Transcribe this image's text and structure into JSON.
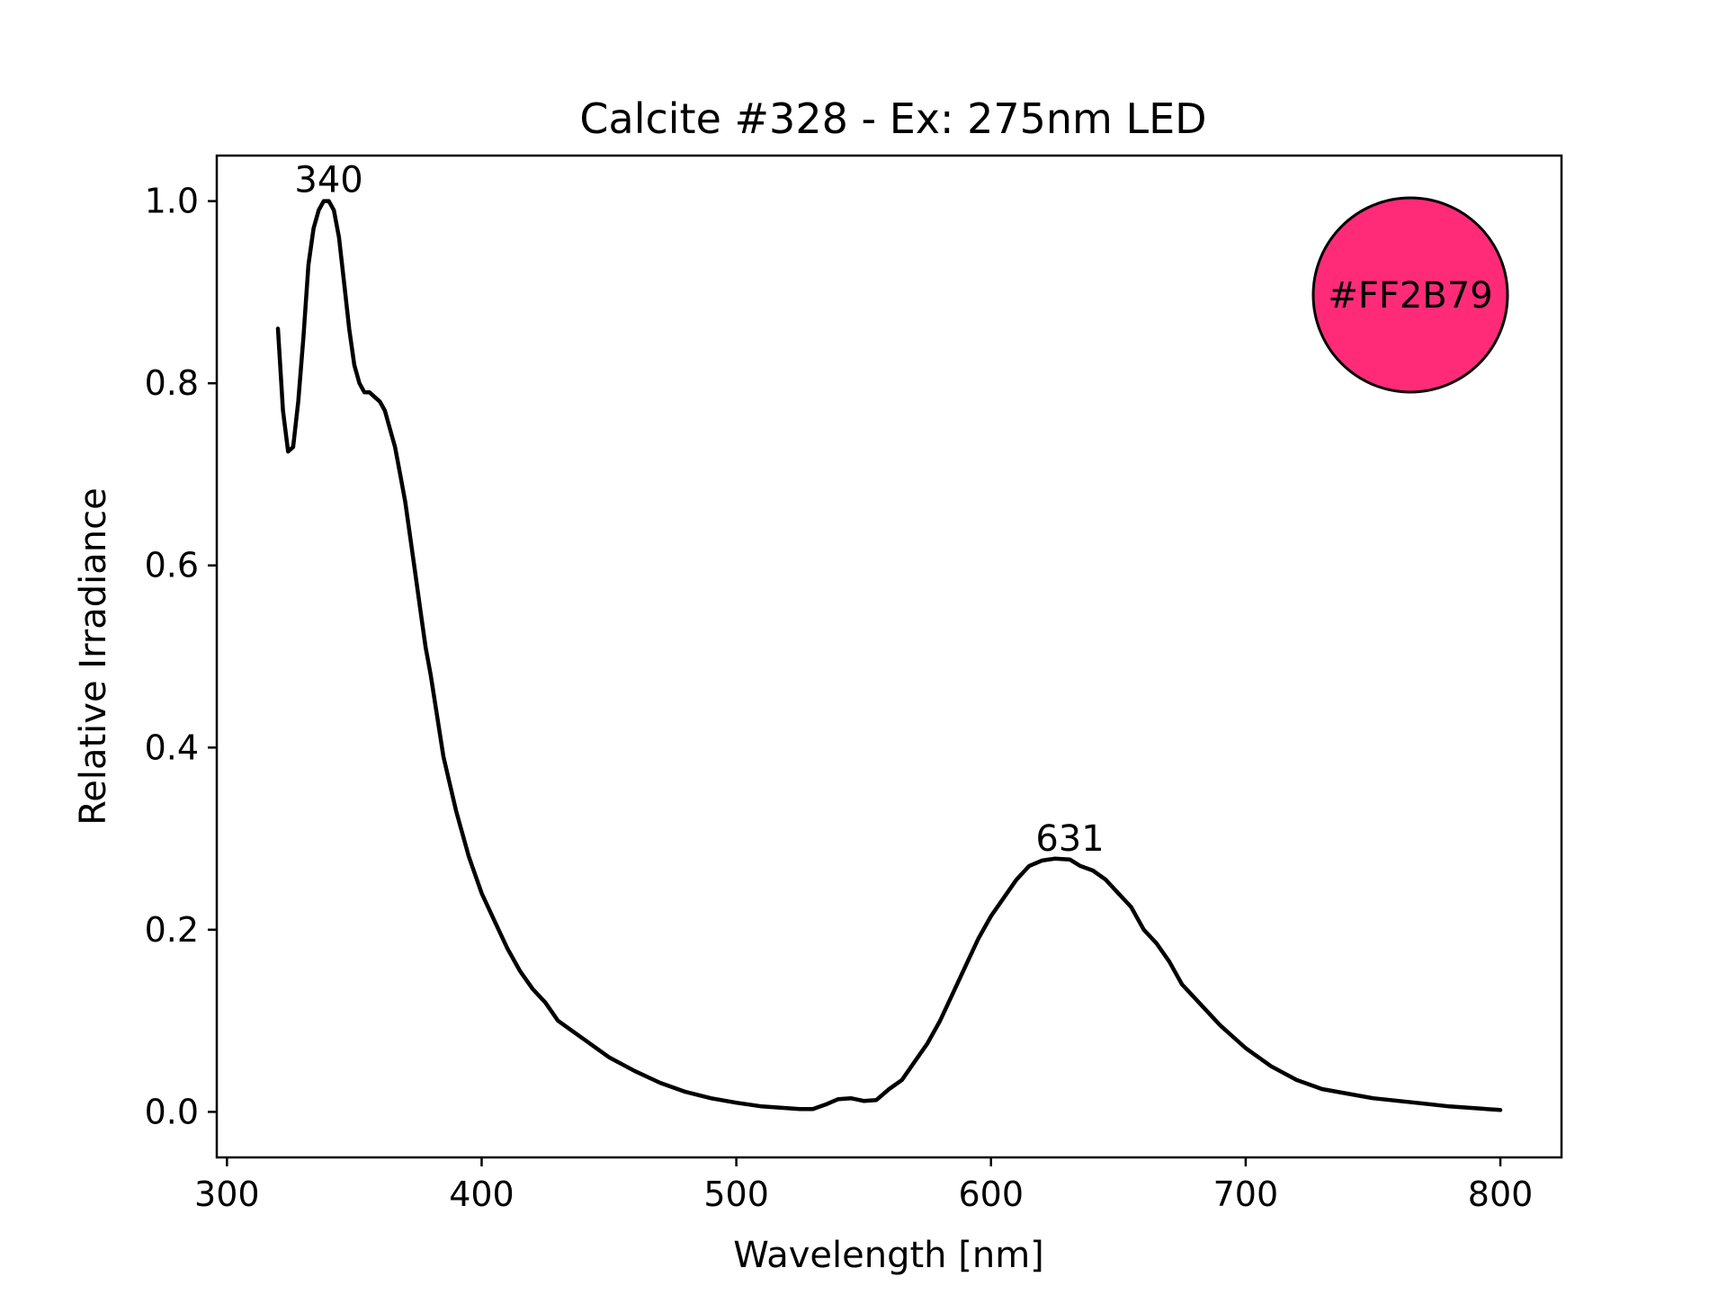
{
  "chart_data": {
    "type": "line",
    "title": "Calcite #328 - Ex: 275nm LED",
    "xlabel": "Wavelength [nm]",
    "ylabel": "Relative Irradiance",
    "xlim": [
      296,
      824
    ],
    "ylim": [
      -0.05,
      1.05
    ],
    "xticks": [
      300,
      400,
      500,
      600,
      700,
      800
    ],
    "yticks": [
      0.0,
      0.2,
      0.4,
      0.6,
      0.8,
      1.0
    ],
    "xtick_labels": [
      "300",
      "400",
      "500",
      "600",
      "700",
      "800"
    ],
    "ytick_labels": [
      "0.0",
      "0.2",
      "0.4",
      "0.6",
      "0.8",
      "1.0"
    ],
    "grid": false,
    "line_color": "#000000",
    "series": [
      {
        "x": [
          320,
          322,
          324,
          326,
          328,
          330,
          332,
          334,
          336,
          338,
          340,
          342,
          344,
          346,
          348,
          350,
          352,
          354,
          356,
          358,
          360,
          362,
          364,
          366,
          368,
          370,
          372,
          374,
          376,
          378,
          380,
          385,
          390,
          395,
          400,
          405,
          410,
          415,
          420,
          425,
          430,
          440,
          450,
          460,
          470,
          480,
          490,
          500,
          510,
          520,
          525,
          530,
          535,
          540,
          545,
          550,
          555,
          560,
          565,
          570,
          575,
          580,
          585,
          590,
          595,
          600,
          605,
          610,
          615,
          620,
          625,
          631,
          635,
          640,
          645,
          650,
          655,
          660,
          665,
          670,
          675,
          680,
          690,
          700,
          710,
          720,
          730,
          740,
          750,
          760,
          770,
          780,
          790,
          800
        ],
        "y": [
          0.86,
          0.77,
          0.725,
          0.73,
          0.78,
          0.85,
          0.93,
          0.97,
          0.99,
          1.0,
          1.0,
          0.99,
          0.96,
          0.91,
          0.86,
          0.82,
          0.8,
          0.79,
          0.79,
          0.785,
          0.78,
          0.77,
          0.75,
          0.73,
          0.7,
          0.67,
          0.63,
          0.59,
          0.55,
          0.51,
          0.48,
          0.39,
          0.33,
          0.28,
          0.24,
          0.21,
          0.18,
          0.155,
          0.135,
          0.12,
          0.1,
          0.08,
          0.06,
          0.045,
          0.032,
          0.022,
          0.015,
          0.01,
          0.006,
          0.004,
          0.003,
          0.003,
          0.008,
          0.014,
          0.015,
          0.012,
          0.013,
          0.025,
          0.035,
          0.055,
          0.075,
          0.1,
          0.13,
          0.16,
          0.19,
          0.215,
          0.235,
          0.255,
          0.27,
          0.276,
          0.278,
          0.277,
          0.27,
          0.265,
          0.255,
          0.24,
          0.225,
          0.2,
          0.185,
          0.165,
          0.14,
          0.125,
          0.095,
          0.07,
          0.05,
          0.035,
          0.025,
          0.02,
          0.015,
          0.012,
          0.009,
          0.006,
          0.004,
          0.002
        ]
      }
    ],
    "annotations": [
      {
        "x": 340,
        "y": 1.0,
        "text": "340"
      },
      {
        "x": 631,
        "y": 0.277,
        "text": "631"
      }
    ],
    "color_swatch": {
      "color": "#FF2B79",
      "label": "#FF2B79"
    }
  }
}
